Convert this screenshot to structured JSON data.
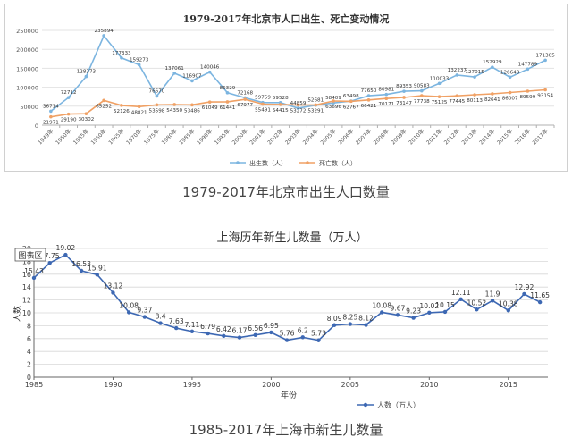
{
  "captions": {
    "chart1": "1979-2017年北京市出生人口数量",
    "chart2": "1985-2017年上海市新生儿数量"
  },
  "chart_data": [
    {
      "type": "line",
      "title": "1979-2017年北京市人口出生、死亡变动情况",
      "x": [
        "1949年",
        "1950年",
        "1955年",
        "1960年",
        "1965年",
        "1970年",
        "1975年",
        "1980年",
        "1985年",
        "1990年",
        "1995年",
        "2000年",
        "2001年",
        "2002年",
        "2003年",
        "2004年",
        "2005年",
        "2006年",
        "2007年",
        "2008年",
        "2009年",
        "2010年",
        "2011年",
        "2012年",
        "2013年",
        "2014年",
        "2015年",
        "2016年",
        "2017年"
      ],
      "ylim": [
        0,
        250000
      ],
      "yticks": [
        "0",
        "50000",
        "100000",
        "150000",
        "200000",
        "250000"
      ],
      "grid": true,
      "legend": "bottom",
      "series": [
        {
          "name": "出生数（人）",
          "color": "#7cb5e0",
          "values": [
            36714,
            72712,
            128373,
            235894,
            177333,
            159273,
            76670,
            137061,
            116907,
            140046,
            85329,
            72168,
            59759,
            59528,
            44859,
            52681,
            58409,
            63498,
            77650,
            80981,
            89353,
            90583,
            110033,
            132237,
            127015,
            152929,
            126648,
            147789,
            171305
          ]
        },
        {
          "name": "死亡数（人）",
          "color": "#f0a165",
          "values": [
            21971,
            29190,
            30302,
            65252,
            52126,
            48821,
            53598,
            54350,
            53486,
            61049,
            61441,
            67977,
            55491,
            54415,
            53272,
            53291,
            63696,
            62767,
            66421,
            70171,
            73147,
            77738,
            75125,
            77445,
            80113,
            82641,
            86007,
            89599,
            93154
          ]
        }
      ]
    },
    {
      "type": "line",
      "title": "上海历年新生儿数量（万人）",
      "xlabel": "年份",
      "ylabel": "人数",
      "xlim": [
        1985,
        2017.5
      ],
      "xticks": [
        1985,
        1990,
        1995,
        2000,
        2005,
        2010,
        2015
      ],
      "ylim": [
        0,
        20
      ],
      "yticks": [
        0,
        2,
        4,
        6,
        8,
        10,
        12,
        14,
        16,
        18,
        20
      ],
      "grid": true,
      "legend": "bottom-center",
      "badge": "图表区",
      "series": [
        {
          "name": "人数（万人）",
          "color": "#3d68b3",
          "x": [
            1985,
            1986,
            1987,
            1988,
            1989,
            1990,
            1991,
            1992,
            1993,
            1994,
            1995,
            1996,
            1997,
            1998,
            1999,
            2000,
            2001,
            2002,
            2003,
            2004,
            2005,
            2006,
            2007,
            2008,
            2009,
            2010,
            2011,
            2012,
            2013,
            2014,
            2015,
            2016,
            2017
          ],
          "values": [
            15.43,
            17.75,
            19.02,
            16.53,
            15.91,
            13.12,
            10.08,
            9.37,
            8.4,
            7.63,
            7.11,
            6.79,
            6.42,
            6.17,
            6.56,
            6.95,
            5.76,
            6.2,
            5.73,
            8.09,
            8.25,
            8.12,
            10.08,
            9.67,
            9.23,
            10.02,
            10.15,
            12.11,
            10.52,
            11.9,
            10.38,
            12.92,
            11.65
          ]
        }
      ]
    }
  ]
}
